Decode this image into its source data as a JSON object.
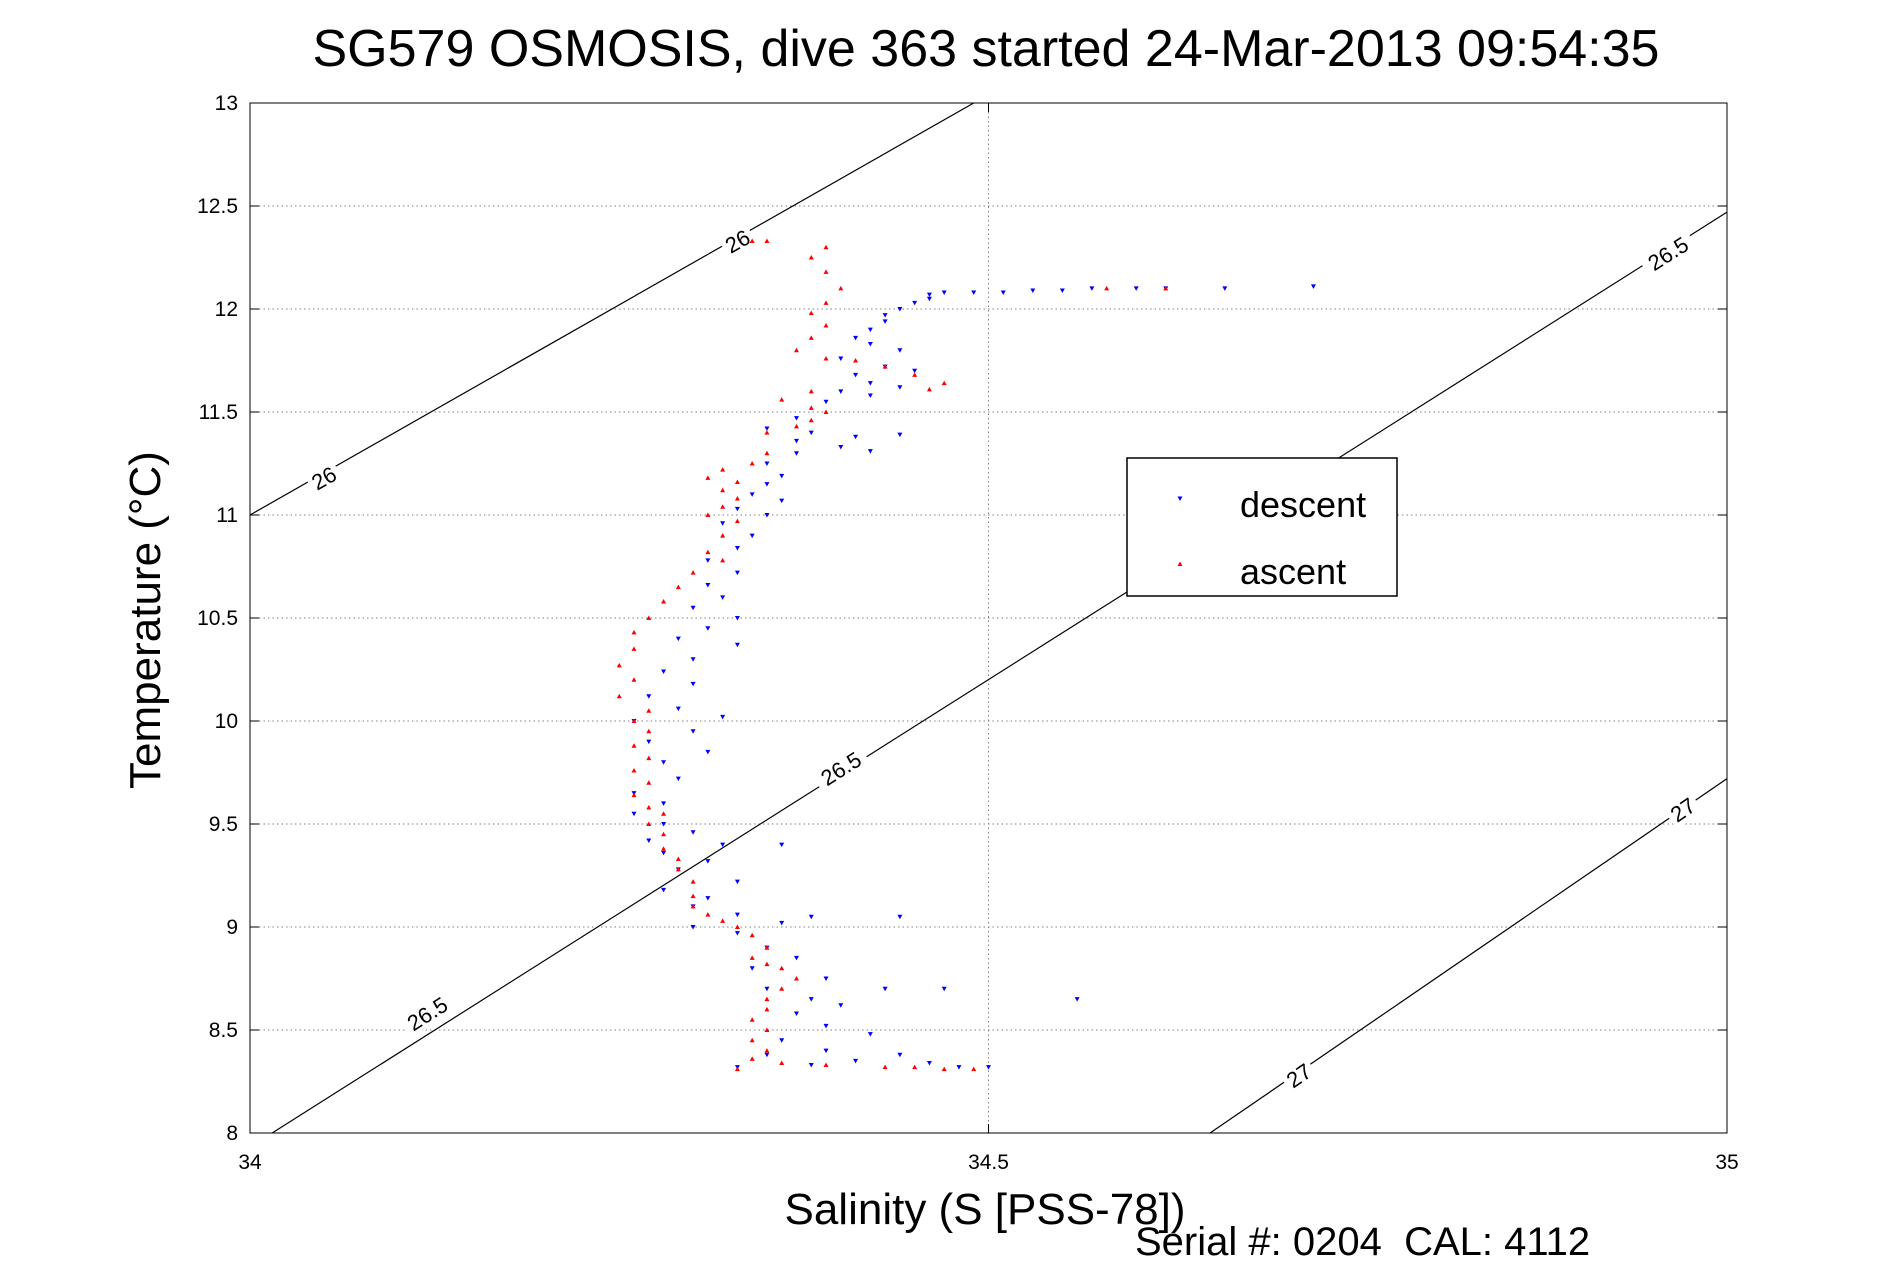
{
  "chart_data": {
    "type": "scatter",
    "title": "SG579 OSMOSIS, dive 363 started 24-Mar-2013 09:54:35",
    "xlabel": "Salinity (S [PSS-78])",
    "ylabel": "Temperature (°C)",
    "footer": "Serial #: 0204  CAL: 4112",
    "xlim": [
      34,
      35
    ],
    "ylim": [
      8,
      13
    ],
    "xticks": [
      "34",
      "34.5",
      "35"
    ],
    "yticks": [
      "8",
      "8.5",
      "9",
      "9.5",
      "10",
      "10.5",
      "11",
      "11.5",
      "12",
      "12.5",
      "13"
    ],
    "grid": true,
    "legend_position": "right",
    "colors": {
      "descent": "#0000ff",
      "ascent": "#ff0000",
      "contour": "#000000"
    },
    "contours": [
      {
        "label": "26",
        "points": [
          [
            34.0,
            11.0
          ],
          [
            34.49,
            13.0
          ]
        ]
      },
      {
        "label": "26.5",
        "points": [
          [
            34.015,
            8.0
          ],
          [
            35.0,
            12.47
          ]
        ]
      },
      {
        "label": "27",
        "points": [
          [
            34.65,
            8.0
          ],
          [
            35.0,
            9.72
          ]
        ]
      }
    ],
    "contour_labels": [
      {
        "text": "26",
        "x": 34.33,
        "y": 12.33
      },
      {
        "text": "26",
        "x": 34.05,
        "y": 11.18
      },
      {
        "text": "26.5",
        "x": 34.96,
        "y": 12.27
      },
      {
        "text": "26.5",
        "x": 34.4,
        "y": 9.77
      },
      {
        "text": "26.5",
        "x": 34.12,
        "y": 8.58
      },
      {
        "text": "27",
        "x": 34.97,
        "y": 9.57
      },
      {
        "text": "27",
        "x": 34.71,
        "y": 8.28
      }
    ],
    "series": [
      {
        "name": "descent",
        "marker": "triangle-down",
        "points": [
          [
            34.72,
            12.11
          ],
          [
            34.66,
            12.1
          ],
          [
            34.62,
            12.1
          ],
          [
            34.6,
            12.1
          ],
          [
            34.57,
            12.1
          ],
          [
            34.55,
            12.09
          ],
          [
            34.53,
            12.09
          ],
          [
            34.51,
            12.08
          ],
          [
            34.49,
            12.08
          ],
          [
            34.47,
            12.08
          ],
          [
            34.46,
            12.07
          ],
          [
            34.46,
            12.05
          ],
          [
            34.45,
            12.03
          ],
          [
            34.44,
            12.0
          ],
          [
            34.43,
            11.97
          ],
          [
            34.43,
            11.94
          ],
          [
            34.42,
            11.9
          ],
          [
            34.41,
            11.86
          ],
          [
            34.42,
            11.83
          ],
          [
            34.44,
            11.8
          ],
          [
            34.4,
            11.76
          ],
          [
            34.43,
            11.72
          ],
          [
            34.45,
            11.7
          ],
          [
            34.41,
            11.68
          ],
          [
            34.42,
            11.64
          ],
          [
            34.44,
            11.62
          ],
          [
            34.4,
            11.6
          ],
          [
            34.42,
            11.58
          ],
          [
            34.39,
            11.55
          ],
          [
            34.37,
            11.47
          ],
          [
            34.35,
            11.42
          ],
          [
            34.38,
            11.4
          ],
          [
            34.41,
            11.38
          ],
          [
            34.44,
            11.39
          ],
          [
            34.37,
            11.36
          ],
          [
            34.4,
            11.33
          ],
          [
            34.42,
            11.31
          ],
          [
            34.37,
            11.3
          ],
          [
            34.35,
            11.25
          ],
          [
            34.36,
            11.19
          ],
          [
            34.35,
            11.15
          ],
          [
            34.34,
            11.1
          ],
          [
            34.36,
            11.07
          ],
          [
            34.33,
            11.03
          ],
          [
            34.35,
            11.0
          ],
          [
            34.32,
            10.96
          ],
          [
            34.34,
            10.9
          ],
          [
            34.33,
            10.84
          ],
          [
            34.31,
            10.78
          ],
          [
            34.33,
            10.72
          ],
          [
            34.31,
            10.66
          ],
          [
            34.32,
            10.6
          ],
          [
            34.3,
            10.55
          ],
          [
            34.33,
            10.5
          ],
          [
            34.31,
            10.45
          ],
          [
            34.29,
            10.4
          ],
          [
            34.33,
            10.37
          ],
          [
            34.3,
            10.3
          ],
          [
            34.28,
            10.24
          ],
          [
            34.3,
            10.18
          ],
          [
            34.27,
            10.12
          ],
          [
            34.29,
            10.06
          ],
          [
            34.32,
            10.02
          ],
          [
            34.26,
            10.0
          ],
          [
            34.3,
            9.95
          ],
          [
            34.27,
            9.9
          ],
          [
            34.31,
            9.85
          ],
          [
            34.28,
            9.8
          ],
          [
            34.29,
            9.72
          ],
          [
            34.26,
            9.65
          ],
          [
            34.28,
            9.6
          ],
          [
            34.26,
            9.55
          ],
          [
            34.28,
            9.5
          ],
          [
            34.3,
            9.46
          ],
          [
            34.27,
            9.42
          ],
          [
            34.32,
            9.4
          ],
          [
            34.36,
            9.4
          ],
          [
            34.28,
            9.36
          ],
          [
            34.31,
            9.32
          ],
          [
            34.29,
            9.28
          ],
          [
            34.33,
            9.22
          ],
          [
            34.28,
            9.18
          ],
          [
            34.31,
            9.14
          ],
          [
            34.3,
            9.1
          ],
          [
            34.33,
            9.06
          ],
          [
            34.38,
            9.05
          ],
          [
            34.44,
            9.05
          ],
          [
            34.36,
            9.02
          ],
          [
            34.3,
            9.0
          ],
          [
            34.33,
            8.97
          ],
          [
            34.35,
            8.9
          ],
          [
            34.37,
            8.85
          ],
          [
            34.34,
            8.8
          ],
          [
            34.39,
            8.75
          ],
          [
            34.43,
            8.7
          ],
          [
            34.47,
            8.7
          ],
          [
            34.35,
            8.7
          ],
          [
            34.38,
            8.65
          ],
          [
            34.56,
            8.65
          ],
          [
            34.4,
            8.62
          ],
          [
            34.37,
            8.58
          ],
          [
            34.39,
            8.52
          ],
          [
            34.42,
            8.48
          ],
          [
            34.36,
            8.45
          ],
          [
            34.39,
            8.4
          ],
          [
            34.44,
            8.38
          ],
          [
            34.35,
            8.38
          ],
          [
            34.41,
            8.35
          ],
          [
            34.46,
            8.34
          ],
          [
            34.38,
            8.33
          ],
          [
            34.33,
            8.32
          ],
          [
            34.48,
            8.32
          ],
          [
            34.5,
            8.32
          ]
        ]
      },
      {
        "name": "ascent",
        "marker": "triangle-up",
        "points": [
          [
            34.34,
            12.33
          ],
          [
            34.35,
            12.33
          ],
          [
            34.39,
            12.3
          ],
          [
            34.38,
            12.25
          ],
          [
            34.39,
            12.18
          ],
          [
            34.4,
            12.1
          ],
          [
            34.39,
            12.03
          ],
          [
            34.38,
            11.98
          ],
          [
            34.39,
            11.92
          ],
          [
            34.38,
            11.86
          ],
          [
            34.37,
            11.8
          ],
          [
            34.39,
            11.76
          ],
          [
            34.41,
            11.75
          ],
          [
            34.43,
            11.72
          ],
          [
            34.45,
            11.68
          ],
          [
            34.47,
            11.64
          ],
          [
            34.46,
            11.61
          ],
          [
            34.38,
            11.6
          ],
          [
            34.36,
            11.56
          ],
          [
            34.38,
            11.52
          ],
          [
            34.39,
            11.5
          ],
          [
            34.38,
            11.46
          ],
          [
            34.37,
            11.43
          ],
          [
            34.35,
            11.4
          ],
          [
            34.35,
            11.3
          ],
          [
            34.34,
            11.25
          ],
          [
            34.32,
            11.22
          ],
          [
            34.31,
            11.18
          ],
          [
            34.33,
            11.16
          ],
          [
            34.32,
            11.12
          ],
          [
            34.33,
            11.08
          ],
          [
            34.32,
            11.04
          ],
          [
            34.31,
            11.0
          ],
          [
            34.33,
            10.97
          ],
          [
            34.32,
            10.9
          ],
          [
            34.31,
            10.82
          ],
          [
            34.32,
            10.78
          ],
          [
            34.3,
            10.72
          ],
          [
            34.29,
            10.65
          ],
          [
            34.28,
            10.58
          ],
          [
            34.27,
            10.5
          ],
          [
            34.26,
            10.43
          ],
          [
            34.26,
            10.35
          ],
          [
            34.25,
            10.27
          ],
          [
            34.26,
            10.2
          ],
          [
            34.25,
            10.12
          ],
          [
            34.27,
            10.05
          ],
          [
            34.26,
            10.0
          ],
          [
            34.27,
            9.95
          ],
          [
            34.26,
            9.88
          ],
          [
            34.27,
            9.82
          ],
          [
            34.26,
            9.76
          ],
          [
            34.27,
            9.7
          ],
          [
            34.26,
            9.64
          ],
          [
            34.27,
            9.58
          ],
          [
            34.28,
            9.55
          ],
          [
            34.27,
            9.5
          ],
          [
            34.28,
            9.45
          ],
          [
            34.28,
            9.38
          ],
          [
            34.29,
            9.33
          ],
          [
            34.29,
            9.28
          ],
          [
            34.3,
            9.22
          ],
          [
            34.3,
            9.15
          ],
          [
            34.3,
            9.1
          ],
          [
            34.31,
            9.06
          ],
          [
            34.32,
            9.03
          ],
          [
            34.33,
            9.0
          ],
          [
            34.34,
            8.96
          ],
          [
            34.35,
            8.9
          ],
          [
            34.34,
            8.85
          ],
          [
            34.35,
            8.82
          ],
          [
            34.36,
            8.8
          ],
          [
            34.37,
            8.75
          ],
          [
            34.36,
            8.7
          ],
          [
            34.35,
            8.65
          ],
          [
            34.35,
            8.6
          ],
          [
            34.34,
            8.55
          ],
          [
            34.35,
            8.5
          ],
          [
            34.34,
            8.45
          ],
          [
            34.35,
            8.4
          ],
          [
            34.34,
            8.36
          ],
          [
            34.36,
            8.34
          ],
          [
            34.39,
            8.33
          ],
          [
            34.43,
            8.32
          ],
          [
            34.45,
            8.32
          ],
          [
            34.47,
            8.31
          ],
          [
            34.49,
            8.31
          ],
          [
            34.33,
            8.31
          ],
          [
            34.58,
            12.1
          ],
          [
            34.62,
            12.1
          ]
        ]
      }
    ]
  }
}
